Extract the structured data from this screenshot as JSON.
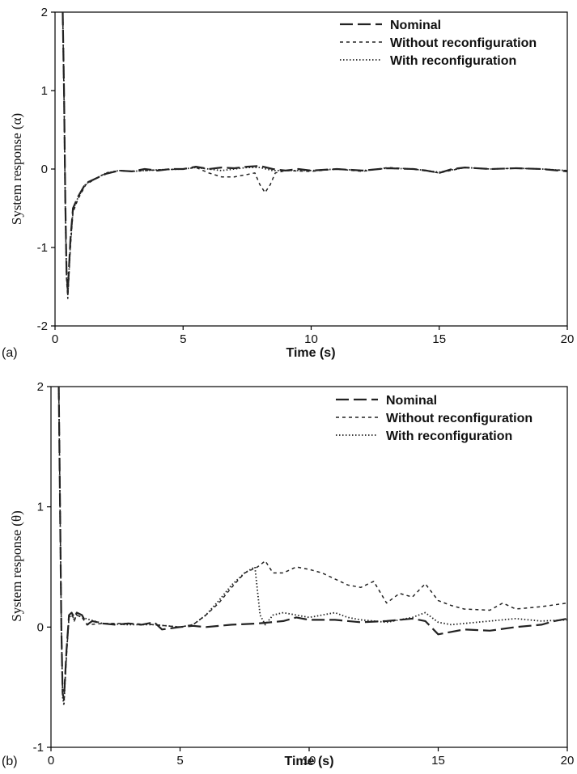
{
  "chart_data": [
    {
      "type": "line",
      "panel_label": "(a)",
      "xlabel": "Time (s)",
      "ylabel": "System response (α)",
      "xlim": [
        0,
        20
      ],
      "ylim": [
        -2,
        2
      ],
      "xticks": [
        "0",
        "5",
        "10",
        "15",
        "20"
      ],
      "yticks": [
        "2",
        "1",
        "0",
        "-1",
        "-2"
      ],
      "grid": false,
      "legend_position": "top-right",
      "series": [
        {
          "name": "Nominal",
          "style": "long-dash",
          "points": [
            [
              0.3,
              2.0
            ],
            [
              0.35,
              1.0
            ],
            [
              0.4,
              -0.4
            ],
            [
              0.45,
              -1.3
            ],
            [
              0.5,
              -1.55
            ],
            [
              0.6,
              -0.9
            ],
            [
              0.7,
              -0.5
            ],
            [
              0.9,
              -0.35
            ],
            [
              1.2,
              -0.18
            ],
            [
              1.6,
              -0.12
            ],
            [
              2.0,
              -0.06
            ],
            [
              2.5,
              -0.02
            ],
            [
              3.0,
              -0.03
            ],
            [
              3.5,
              0.0
            ],
            [
              4.0,
              -0.02
            ],
            [
              4.5,
              0.0
            ],
            [
              5.0,
              0.0
            ],
            [
              5.5,
              0.03
            ],
            [
              6.0,
              0.0
            ],
            [
              6.5,
              0.02
            ],
            [
              7.0,
              0.01
            ],
            [
              7.5,
              0.03
            ],
            [
              8.0,
              0.04
            ],
            [
              8.5,
              0.0
            ],
            [
              9.0,
              -0.02
            ],
            [
              9.5,
              0.0
            ],
            [
              10.0,
              -0.02
            ],
            [
              11.0,
              0.0
            ],
            [
              12.0,
              -0.02
            ],
            [
              13.0,
              0.01
            ],
            [
              14.0,
              0.0
            ],
            [
              14.5,
              -0.02
            ],
            [
              15.0,
              -0.05
            ],
            [
              15.5,
              0.0
            ],
            [
              16.0,
              0.02
            ],
            [
              17.0,
              0.0
            ],
            [
              18.0,
              0.01
            ],
            [
              19.0,
              0.0
            ],
            [
              20.0,
              -0.03
            ]
          ]
        },
        {
          "name": "Without reconfiguration",
          "style": "short-dash",
          "points": [
            [
              0.3,
              2.0
            ],
            [
              0.35,
              0.9
            ],
            [
              0.4,
              -0.5
            ],
            [
              0.45,
              -1.4
            ],
            [
              0.5,
              -1.65
            ],
            [
              0.6,
              -1.0
            ],
            [
              0.7,
              -0.55
            ],
            [
              0.9,
              -0.38
            ],
            [
              1.2,
              -0.2
            ],
            [
              1.6,
              -0.12
            ],
            [
              2.0,
              -0.05
            ],
            [
              2.5,
              -0.02
            ],
            [
              3.0,
              -0.03
            ],
            [
              4.0,
              -0.01
            ],
            [
              5.0,
              0.0
            ],
            [
              5.5,
              0.02
            ],
            [
              6.0,
              -0.05
            ],
            [
              6.5,
              -0.1
            ],
            [
              7.0,
              -0.1
            ],
            [
              7.5,
              -0.07
            ],
            [
              7.8,
              -0.05
            ],
            [
              8.0,
              -0.2
            ],
            [
              8.2,
              -0.3
            ],
            [
              8.4,
              -0.2
            ],
            [
              8.6,
              -0.05
            ],
            [
              9.0,
              -0.02
            ],
            [
              10.0,
              -0.03
            ],
            [
              11.0,
              0.0
            ],
            [
              12.0,
              -0.03
            ],
            [
              13.0,
              0.02
            ],
            [
              14.0,
              0.0
            ],
            [
              15.0,
              -0.05
            ],
            [
              16.0,
              0.02
            ],
            [
              17.0,
              0.0
            ],
            [
              18.0,
              0.01
            ],
            [
              19.0,
              0.0
            ],
            [
              20.0,
              -0.02
            ]
          ]
        },
        {
          "name": "With reconfiguration",
          "style": "dotted",
          "points": [
            [
              0.3,
              2.0
            ],
            [
              0.35,
              1.0
            ],
            [
              0.4,
              -0.45
            ],
            [
              0.45,
              -1.35
            ],
            [
              0.5,
              -1.6
            ],
            [
              0.6,
              -0.95
            ],
            [
              0.7,
              -0.52
            ],
            [
              0.9,
              -0.36
            ],
            [
              1.2,
              -0.19
            ],
            [
              1.6,
              -0.12
            ],
            [
              2.0,
              -0.05
            ],
            [
              2.5,
              -0.02
            ],
            [
              3.0,
              -0.03
            ],
            [
              4.0,
              -0.01
            ],
            [
              5.0,
              0.0
            ],
            [
              5.5,
              0.02
            ],
            [
              6.0,
              0.0
            ],
            [
              6.5,
              -0.02
            ],
            [
              7.0,
              0.0
            ],
            [
              7.5,
              0.02
            ],
            [
              8.0,
              0.02
            ],
            [
              8.5,
              -0.02
            ],
            [
              9.0,
              -0.02
            ],
            [
              10.0,
              -0.02
            ],
            [
              11.0,
              0.0
            ],
            [
              12.0,
              -0.02
            ],
            [
              13.0,
              0.01
            ],
            [
              14.0,
              0.0
            ],
            [
              15.0,
              -0.04
            ],
            [
              16.0,
              0.02
            ],
            [
              17.0,
              0.0
            ],
            [
              18.0,
              0.01
            ],
            [
              19.0,
              0.0
            ],
            [
              20.0,
              -0.02
            ]
          ]
        }
      ]
    },
    {
      "type": "line",
      "panel_label": "(b)",
      "xlabel": "Time (s)",
      "ylabel": "System response (θ)",
      "xlim": [
        0,
        20
      ],
      "ylim": [
        -1,
        2
      ],
      "xticks": [
        "0",
        "5",
        "10",
        "15",
        "20"
      ],
      "yticks": [
        "2",
        "1",
        "0",
        "-1"
      ],
      "grid": false,
      "legend_position": "top-right",
      "series": [
        {
          "name": "Nominal",
          "style": "long-dash",
          "points": [
            [
              0.3,
              2.0
            ],
            [
              0.35,
              1.0
            ],
            [
              0.4,
              0.0
            ],
            [
              0.45,
              -0.55
            ],
            [
              0.5,
              -0.6
            ],
            [
              0.6,
              -0.2
            ],
            [
              0.7,
              0.1
            ],
            [
              0.8,
              0.12
            ],
            [
              0.9,
              0.08
            ],
            [
              1.0,
              0.12
            ],
            [
              1.2,
              0.1
            ],
            [
              1.4,
              0.02
            ],
            [
              1.6,
              0.05
            ],
            [
              2.0,
              0.03
            ],
            [
              2.5,
              0.02
            ],
            [
              3.0,
              0.03
            ],
            [
              3.5,
              0.02
            ],
            [
              4.0,
              0.04
            ],
            [
              4.3,
              -0.02
            ],
            [
              5.0,
              0.0
            ],
            [
              5.5,
              0.01
            ],
            [
              6.0,
              0.0
            ],
            [
              7.0,
              0.02
            ],
            [
              8.0,
              0.03
            ],
            [
              9.0,
              0.05
            ],
            [
              9.5,
              0.08
            ],
            [
              10.0,
              0.06
            ],
            [
              11.0,
              0.06
            ],
            [
              12.0,
              0.04
            ],
            [
              13.0,
              0.05
            ],
            [
              14.0,
              0.07
            ],
            [
              14.5,
              0.05
            ],
            [
              15.0,
              -0.06
            ],
            [
              15.5,
              -0.04
            ],
            [
              16.0,
              -0.02
            ],
            [
              17.0,
              -0.03
            ],
            [
              18.0,
              0.0
            ],
            [
              19.0,
              0.02
            ],
            [
              19.5,
              0.05
            ],
            [
              20.0,
              0.07
            ]
          ]
        },
        {
          "name": "Without reconfiguration",
          "style": "short-dash",
          "points": [
            [
              0.3,
              2.0
            ],
            [
              0.35,
              1.0
            ],
            [
              0.4,
              0.0
            ],
            [
              0.45,
              -0.55
            ],
            [
              0.5,
              -0.62
            ],
            [
              0.6,
              -0.25
            ],
            [
              0.7,
              0.1
            ],
            [
              0.8,
              0.12
            ],
            [
              0.9,
              0.05
            ],
            [
              1.0,
              0.1
            ],
            [
              1.2,
              0.08
            ],
            [
              1.4,
              0.02
            ],
            [
              2.0,
              0.03
            ],
            [
              3.0,
              0.03
            ],
            [
              4.0,
              0.02
            ],
            [
              5.0,
              0.0
            ],
            [
              5.5,
              0.02
            ],
            [
              6.0,
              0.1
            ],
            [
              6.5,
              0.2
            ],
            [
              7.0,
              0.33
            ],
            [
              7.5,
              0.45
            ],
            [
              8.0,
              0.5
            ],
            [
              8.3,
              0.55
            ],
            [
              8.6,
              0.45
            ],
            [
              9.0,
              0.45
            ],
            [
              9.5,
              0.5
            ],
            [
              10.0,
              0.48
            ],
            [
              10.5,
              0.45
            ],
            [
              11.0,
              0.4
            ],
            [
              11.5,
              0.35
            ],
            [
              12.0,
              0.33
            ],
            [
              12.5,
              0.38
            ],
            [
              13.0,
              0.2
            ],
            [
              13.5,
              0.28
            ],
            [
              14.0,
              0.25
            ],
            [
              14.5,
              0.36
            ],
            [
              15.0,
              0.22
            ],
            [
              15.5,
              0.18
            ],
            [
              16.0,
              0.15
            ],
            [
              17.0,
              0.14
            ],
            [
              17.5,
              0.2
            ],
            [
              18.0,
              0.15
            ],
            [
              19.0,
              0.17
            ],
            [
              20.0,
              0.2
            ]
          ]
        },
        {
          "name": "With reconfiguration",
          "style": "dotted",
          "points": [
            [
              0.3,
              2.0
            ],
            [
              0.35,
              1.0
            ],
            [
              0.4,
              0.0
            ],
            [
              0.45,
              -0.58
            ],
            [
              0.5,
              -0.65
            ],
            [
              0.6,
              -0.22
            ],
            [
              0.7,
              0.08
            ],
            [
              0.8,
              0.1
            ],
            [
              0.9,
              0.06
            ],
            [
              1.0,
              0.1
            ],
            [
              1.2,
              0.08
            ],
            [
              2.0,
              0.03
            ],
            [
              3.0,
              0.02
            ],
            [
              4.0,
              0.02
            ],
            [
              5.0,
              0.0
            ],
            [
              5.5,
              0.02
            ],
            [
              6.0,
              0.1
            ],
            [
              6.5,
              0.22
            ],
            [
              7.0,
              0.35
            ],
            [
              7.5,
              0.45
            ],
            [
              7.9,
              0.5
            ],
            [
              8.1,
              0.1
            ],
            [
              8.3,
              0.02
            ],
            [
              8.6,
              0.1
            ],
            [
              9.0,
              0.12
            ],
            [
              9.5,
              0.1
            ],
            [
              10.0,
              0.08
            ],
            [
              10.5,
              0.1
            ],
            [
              11.0,
              0.12
            ],
            [
              11.5,
              0.08
            ],
            [
              12.0,
              0.06
            ],
            [
              12.5,
              0.05
            ],
            [
              13.0,
              0.04
            ],
            [
              14.0,
              0.08
            ],
            [
              14.5,
              0.12
            ],
            [
              15.0,
              0.04
            ],
            [
              15.5,
              0.02
            ],
            [
              16.0,
              0.03
            ],
            [
              17.0,
              0.05
            ],
            [
              18.0,
              0.07
            ],
            [
              19.0,
              0.05
            ],
            [
              20.0,
              0.06
            ]
          ]
        }
      ]
    }
  ]
}
